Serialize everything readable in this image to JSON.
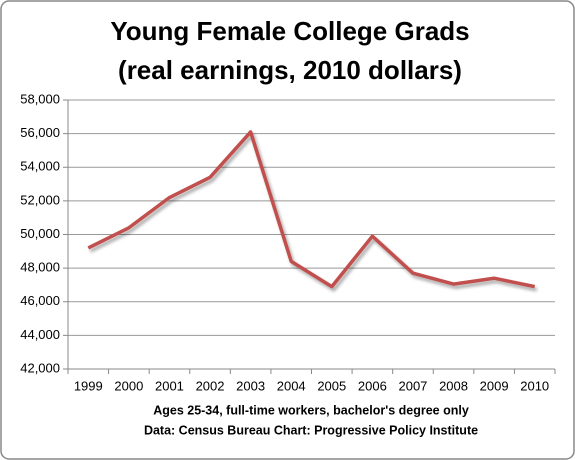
{
  "chart_data": {
    "type": "line",
    "title": "Young Female College Grads",
    "subtitle": "(real earnings, 2010 dollars)",
    "notes": [
      "Ages 25-34, full-time workers, bachelor's degree only",
      "Data: Census Bureau Chart: Progressive Policy Institute"
    ],
    "categories": [
      "1999",
      "2000",
      "2001",
      "2002",
      "2003",
      "2004",
      "2005",
      "2006",
      "2007",
      "2008",
      "2009",
      "2010"
    ],
    "values": [
      49200,
      50400,
      52200,
      53400,
      56100,
      48400,
      46900,
      49900,
      47700,
      47050,
      47400,
      46900
    ],
    "color": "#c0504d",
    "ylim": [
      42000,
      58000
    ],
    "yticks": [
      {
        "value": 42000,
        "label": "42,000"
      },
      {
        "value": 44000,
        "label": "44,000"
      },
      {
        "value": 46000,
        "label": "46,000"
      },
      {
        "value": 48000,
        "label": "48,000"
      },
      {
        "value": 50000,
        "label": "50,000"
      },
      {
        "value": 52000,
        "label": "52,000"
      },
      {
        "value": 54000,
        "label": "54,000"
      },
      {
        "value": 56000,
        "label": "56,000"
      },
      {
        "value": 58000,
        "label": "58,000"
      }
    ],
    "grid": true
  }
}
